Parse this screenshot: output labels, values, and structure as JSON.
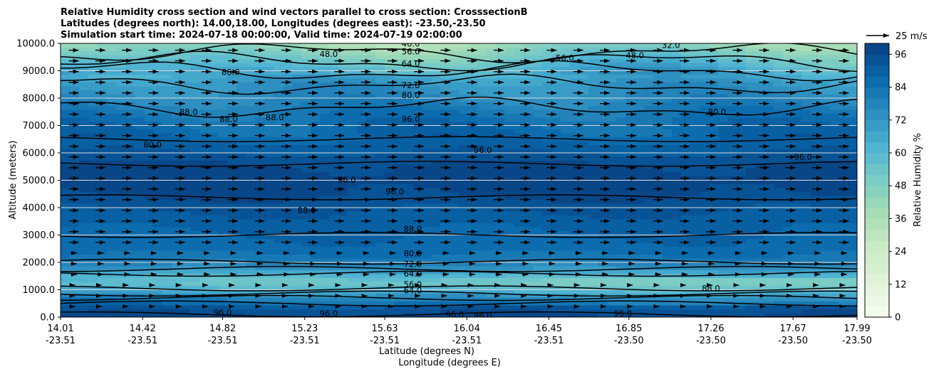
{
  "chart_data": {
    "type": "heatmap",
    "title_lines": [
      "Relative Humidity cross section and wind vectors parallel to cross section: CrosssectionB",
      "Latitudes (degrees north): 14.00,18.00, Longitudes (degrees east): -23.50,-23.50",
      "Simulation start time: 2024-07-18 00:00:00, Valid time: 2024-07-19 02:00:00"
    ],
    "ylabel": "Altitude (meters)",
    "xlabel_1": "Latitude (degrees N)",
    "xlabel_2": "Longitude (degrees E)",
    "ylim": [
      0,
      10000
    ],
    "yticks": [
      "0.0",
      "1000.0",
      "2000.0",
      "3000.0",
      "4000.0",
      "5000.0",
      "6000.0",
      "7000.0",
      "8000.0",
      "9000.0",
      "10000.0"
    ],
    "ytick_values": [
      0,
      1000,
      2000,
      3000,
      4000,
      5000,
      6000,
      7000,
      8000,
      9000,
      10000
    ],
    "xlim": [
      14.01,
      17.99
    ],
    "xticks_lat": [
      "14.01",
      "14.42",
      "14.82",
      "15.23",
      "15.63",
      "16.04",
      "16.45",
      "16.85",
      "17.26",
      "17.67",
      "17.99"
    ],
    "xticks_lon": [
      "-23.51",
      "-23.51",
      "-23.51",
      "-23.51",
      "-23.51",
      "-23.51",
      "-23.51",
      "-23.50",
      "-23.50",
      "-23.50",
      "-23.50"
    ],
    "xtick_values": [
      14.01,
      14.42,
      14.82,
      15.23,
      15.63,
      16.04,
      16.45,
      16.85,
      17.26,
      17.67,
      17.99
    ],
    "grid": "horizontal",
    "colorbar": {
      "label": "Relative Humidity %",
      "ticks": [
        "0",
        "12",
        "24",
        "36",
        "48",
        "60",
        "72",
        "84",
        "96"
      ],
      "tick_values": [
        0,
        12,
        24,
        36,
        48,
        60,
        72,
        84,
        96
      ],
      "range": [
        0,
        100
      ],
      "colormap": "GnBu",
      "colors": [
        "#f7fcf0",
        "#e0f3db",
        "#ccebc5",
        "#a8ddb5",
        "#7bccc4",
        "#4eb3d3",
        "#2b8cbe",
        "#0868ac",
        "#084081"
      ]
    },
    "quiver_key": {
      "label": "25 m/s",
      "value": 25
    },
    "humidity_profile": {
      "altitude": [
        0,
        300,
        600,
        900,
        1200,
        1500,
        1800,
        2100,
        2500,
        3000,
        3500,
        4000,
        4500,
        5000,
        5500,
        6000,
        6500,
        7000,
        7500,
        8000,
        8500,
        9000,
        9500,
        10000
      ],
      "rh": [
        97,
        94,
        85,
        70,
        58,
        60,
        74,
        82,
        86,
        88,
        90,
        93,
        97,
        98,
        97,
        92,
        88,
        86,
        82,
        76,
        72,
        64,
        52,
        40
      ]
    },
    "contour_levels": [
      32,
      40,
      48,
      56,
      64,
      72,
      80,
      88,
      96
    ],
    "contour_labels": [
      {
        "text": "80.0",
        "lat": 15.77,
        "alt": 2330
      },
      {
        "text": "72.0",
        "lat": 15.77,
        "alt": 1930
      },
      {
        "text": "64.0",
        "lat": 15.77,
        "alt": 1580
      },
      {
        "text": "56.0",
        "lat": 15.77,
        "alt": 1200
      },
      {
        "text": "64.0",
        "lat": 15.77,
        "alt": 970
      },
      {
        "text": "88.0",
        "lat": 15.77,
        "alt": 3220
      },
      {
        "text": "96.0",
        "lat": 15.76,
        "alt": 7230
      },
      {
        "text": "80.0",
        "lat": 15.76,
        "alt": 8110
      },
      {
        "text": "72.0",
        "lat": 15.76,
        "alt": 8470
      },
      {
        "text": "64.0",
        "lat": 15.76,
        "alt": 9260
      },
      {
        "text": "56.0",
        "lat": 15.76,
        "alt": 9700
      },
      {
        "text": "40.0",
        "lat": 15.76,
        "alt": 9990
      },
      {
        "text": "48.0",
        "lat": 15.35,
        "alt": 9610
      },
      {
        "text": "56.0",
        "lat": 16.53,
        "alt": 9470
      },
      {
        "text": "48.0",
        "lat": 16.88,
        "alt": 9560
      },
      {
        "text": "32.0",
        "lat": 17.06,
        "alt": 9930
      },
      {
        "text": "80.0",
        "lat": 14.47,
        "alt": 6300
      },
      {
        "text": "88.0",
        "lat": 14.65,
        "alt": 7500
      },
      {
        "text": "88.0",
        "lat": 14.85,
        "alt": 7230
      },
      {
        "text": "88.0",
        "lat": 15.08,
        "alt": 7300
      },
      {
        "text": "80.0",
        "lat": 14.86,
        "alt": 8950
      },
      {
        "text": "96.0",
        "lat": 15.44,
        "alt": 5010
      },
      {
        "text": "96.0",
        "lat": 15.68,
        "alt": 4590
      },
      {
        "text": "88.0",
        "lat": 15.24,
        "alt": 3900
      },
      {
        "text": "96.0",
        "lat": 16.12,
        "alt": 6100
      },
      {
        "text": "80.0",
        "lat": 17.29,
        "alt": 7500
      },
      {
        "text": "96.0",
        "lat": 17.72,
        "alt": 5850
      },
      {
        "text": "88.0",
        "lat": 17.26,
        "alt": 1050
      },
      {
        "text": "96.0",
        "lat": 14.82,
        "alt": 170
      },
      {
        "text": "96.0",
        "lat": 15.35,
        "alt": 130
      },
      {
        "text": "96.0",
        "lat": 15.98,
        "alt": 90
      },
      {
        "text": "96.0",
        "lat": 16.12,
        "alt": 70
      },
      {
        "text": "96.0",
        "lat": 16.82,
        "alt": 130
      }
    ],
    "wind": {
      "direction": "parallel, toward increasing latitude",
      "approx_speed_ms": 12
    }
  }
}
